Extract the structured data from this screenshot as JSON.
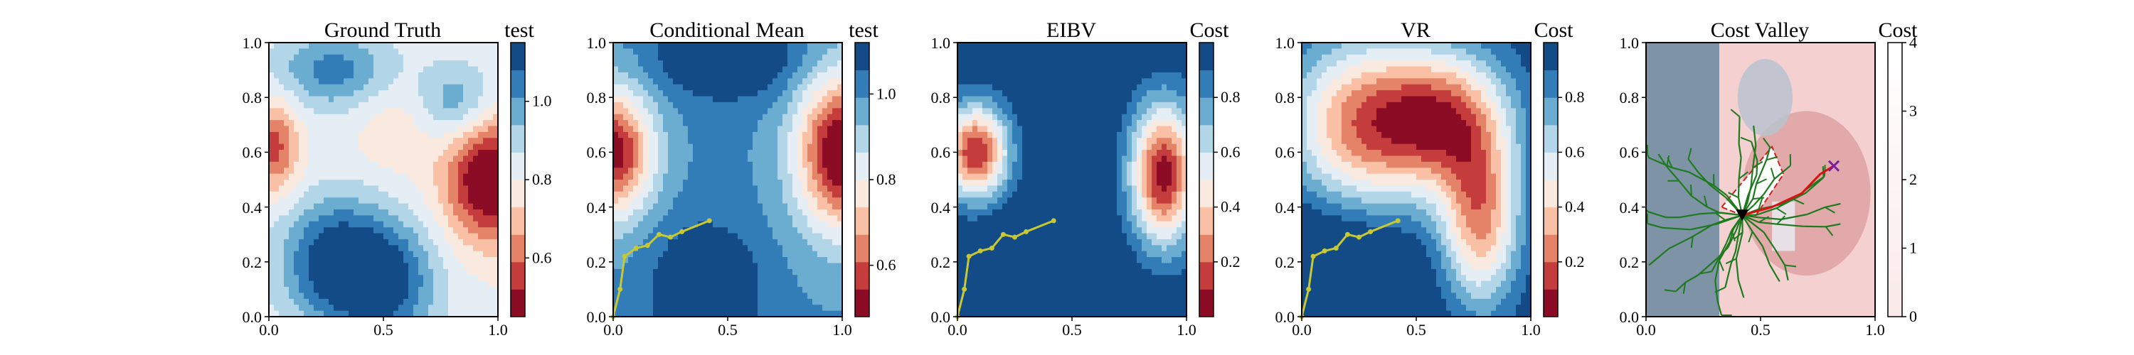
{
  "figure": {
    "panel_names": [
      "Ground Truth",
      "Conditional Mean",
      "EIBV",
      "VR",
      "Cost Valley"
    ]
  },
  "chart_data": [
    {
      "type": "heatmap",
      "title": "Ground Truth",
      "xlabel": "",
      "ylabel": "",
      "xlim": [
        0,
        1
      ],
      "ylim": [
        0,
        1
      ],
      "x_ticks": [
        "0.0",
        "0.5",
        "1.0"
      ],
      "y_ticks": [
        "0.0",
        "0.2",
        "0.4",
        "0.6",
        "0.8",
        "1.0"
      ],
      "colorbar": {
        "label": "test",
        "range": [
          0.45,
          1.15
        ],
        "ticks": [
          "0.6",
          "0.8",
          "1.0"
        ],
        "colormap": "RdBu",
        "levels": 10
      },
      "field": [
        {
          "x": 0.28,
          "y": 0.2,
          "amp": 0.32,
          "sx": 0.16,
          "sy": 0.16
        },
        {
          "x": 0.52,
          "y": 0.12,
          "amp": 0.28,
          "sx": 0.15,
          "sy": 0.16
        },
        {
          "x": 0.28,
          "y": 0.9,
          "amp": 0.22,
          "sx": 0.18,
          "sy": 0.1
        },
        {
          "x": 0.82,
          "y": 0.78,
          "amp": 0.18,
          "sx": 0.12,
          "sy": 0.1
        },
        {
          "x": 0.97,
          "y": 0.5,
          "amp": -0.42,
          "sx": 0.14,
          "sy": 0.16
        },
        {
          "x": 0.02,
          "y": 0.62,
          "amp": -0.26,
          "sx": 0.08,
          "sy": 0.12
        },
        {
          "x": 0.55,
          "y": 0.68,
          "amp": -0.08,
          "sx": 0.12,
          "sy": 0.12
        }
      ],
      "field_base": 0.82
    },
    {
      "type": "heatmap",
      "title": "Conditional Mean",
      "xlabel": "",
      "ylabel": "",
      "xlim": [
        0,
        1
      ],
      "ylim": [
        0,
        1
      ],
      "x_ticks": [
        "0.0",
        "0.5",
        "1.0"
      ],
      "y_ticks": [
        "0.0",
        "0.2",
        "0.4",
        "0.6",
        "0.8",
        "1.0"
      ],
      "colorbar": {
        "label": "test",
        "range": [
          0.48,
          1.12
        ],
        "ticks": [
          "0.6",
          "0.8",
          "1.0"
        ],
        "colormap": "RdBu",
        "levels": 10
      },
      "field": [
        {
          "x": 0.0,
          "y": 0.6,
          "amp": -0.5,
          "sx": 0.12,
          "sy": 0.16
        },
        {
          "x": 1.0,
          "y": 0.6,
          "amp": -0.55,
          "sx": 0.14,
          "sy": 0.2
        },
        {
          "x": 0.5,
          "y": 0.95,
          "amp": 0.2,
          "sx": 0.2,
          "sy": 0.1
        },
        {
          "x": 0.4,
          "y": 0.1,
          "amp": 0.2,
          "sx": 0.15,
          "sy": 0.15
        }
      ],
      "field_base": 1.0,
      "path": [
        [
          0.0,
          0.0
        ],
        [
          0.03,
          0.1
        ],
        [
          0.05,
          0.22
        ],
        [
          0.1,
          0.25
        ],
        [
          0.15,
          0.26
        ],
        [
          0.2,
          0.3
        ],
        [
          0.25,
          0.29
        ],
        [
          0.3,
          0.31
        ],
        [
          0.42,
          0.35
        ]
      ]
    },
    {
      "type": "heatmap",
      "title": "EIBV",
      "xlabel": "",
      "ylabel": "",
      "xlim": [
        0,
        1
      ],
      "ylim": [
        0,
        1
      ],
      "x_ticks": [
        "0.0",
        "0.5",
        "1.0"
      ],
      "y_ticks": [
        "0.0",
        "0.2",
        "0.4",
        "0.6",
        "0.8",
        "1.0"
      ],
      "colorbar": {
        "label": "Cost",
        "range": [
          0.0,
          1.0
        ],
        "ticks": [
          "0.2",
          "0.4",
          "0.6",
          "0.8"
        ],
        "colormap": "RdBu",
        "levels": 10
      },
      "field": [
        {
          "x": 0.08,
          "y": 0.6,
          "amp": -0.9,
          "sx": 0.1,
          "sy": 0.12
        },
        {
          "x": 0.9,
          "y": 0.52,
          "amp": -0.95,
          "sx": 0.1,
          "sy": 0.18
        },
        {
          "x": 0.5,
          "y": 1.0,
          "amp": 0.2,
          "sx": 0.15,
          "sy": 0.08
        },
        {
          "x": 0.35,
          "y": 0.1,
          "amp": 0.2,
          "sx": 0.2,
          "sy": 0.15
        }
      ],
      "field_base": 1.0,
      "path": [
        [
          0.0,
          0.0
        ],
        [
          0.03,
          0.1
        ],
        [
          0.05,
          0.22
        ],
        [
          0.1,
          0.24
        ],
        [
          0.15,
          0.25
        ],
        [
          0.2,
          0.3
        ],
        [
          0.25,
          0.29
        ],
        [
          0.3,
          0.31
        ],
        [
          0.42,
          0.35
        ]
      ]
    },
    {
      "type": "heatmap",
      "title": "VR",
      "xlabel": "",
      "ylabel": "",
      "xlim": [
        0,
        1
      ],
      "ylim": [
        0,
        1
      ],
      "x_ticks": [
        "0.0",
        "0.5",
        "1.0"
      ],
      "y_ticks": [
        "0.0",
        "0.2",
        "0.4",
        "0.6",
        "0.8",
        "1.0"
      ],
      "colorbar": {
        "label": "Cost",
        "range": [
          0.0,
          1.0
        ],
        "ticks": [
          "0.2",
          "0.4",
          "0.6",
          "0.8"
        ],
        "colormap": "RdBu",
        "levels": 10
      },
      "field": [
        {
          "x": 0.25,
          "y": 0.7,
          "amp": -0.7,
          "sx": 0.22,
          "sy": 0.22
        },
        {
          "x": 0.62,
          "y": 0.72,
          "amp": -0.75,
          "sx": 0.2,
          "sy": 0.18
        },
        {
          "x": 0.78,
          "y": 0.35,
          "amp": -0.7,
          "sx": 0.12,
          "sy": 0.22
        },
        {
          "x": 0.1,
          "y": 0.1,
          "amp": 0.25,
          "sx": 0.25,
          "sy": 0.2
        }
      ],
      "field_base": 1.0,
      "path": [
        [
          0.0,
          0.0
        ],
        [
          0.03,
          0.1
        ],
        [
          0.05,
          0.22
        ],
        [
          0.1,
          0.24
        ],
        [
          0.15,
          0.25
        ],
        [
          0.2,
          0.3
        ],
        [
          0.25,
          0.29
        ],
        [
          0.3,
          0.31
        ],
        [
          0.42,
          0.35
        ]
      ]
    },
    {
      "type": "heatmap",
      "title": "Cost Valley",
      "xlabel": "",
      "ylabel": "",
      "xlim": [
        0,
        1
      ],
      "ylim": [
        0,
        1
      ],
      "x_ticks": [
        "0.0",
        "0.5",
        "1.0"
      ],
      "y_ticks": [
        "0.0",
        "0.2",
        "0.4",
        "0.6",
        "0.8",
        "1.0"
      ],
      "colorbar": {
        "label": "Cost",
        "range": [
          0,
          4
        ],
        "ticks": [
          "0",
          "1",
          "2",
          "3",
          "4"
        ],
        "colormap": "Reds",
        "levels": 1
      },
      "annotations": [
        "tree",
        "budget-ellipse",
        "current-position",
        "next-target"
      ],
      "current_position": [
        0.42,
        0.37
      ],
      "next_target": [
        0.82,
        0.55
      ],
      "budget_polygon": [
        [
          0.33,
          0.4
        ],
        [
          0.55,
          0.62
        ],
        [
          0.6,
          0.52
        ],
        [
          0.48,
          0.37
        ],
        [
          0.42,
          0.37
        ]
      ],
      "route": [
        [
          0.42,
          0.37
        ],
        [
          0.55,
          0.4
        ],
        [
          0.68,
          0.45
        ],
        [
          0.76,
          0.52
        ],
        [
          0.82,
          0.55
        ]
      ]
    }
  ]
}
